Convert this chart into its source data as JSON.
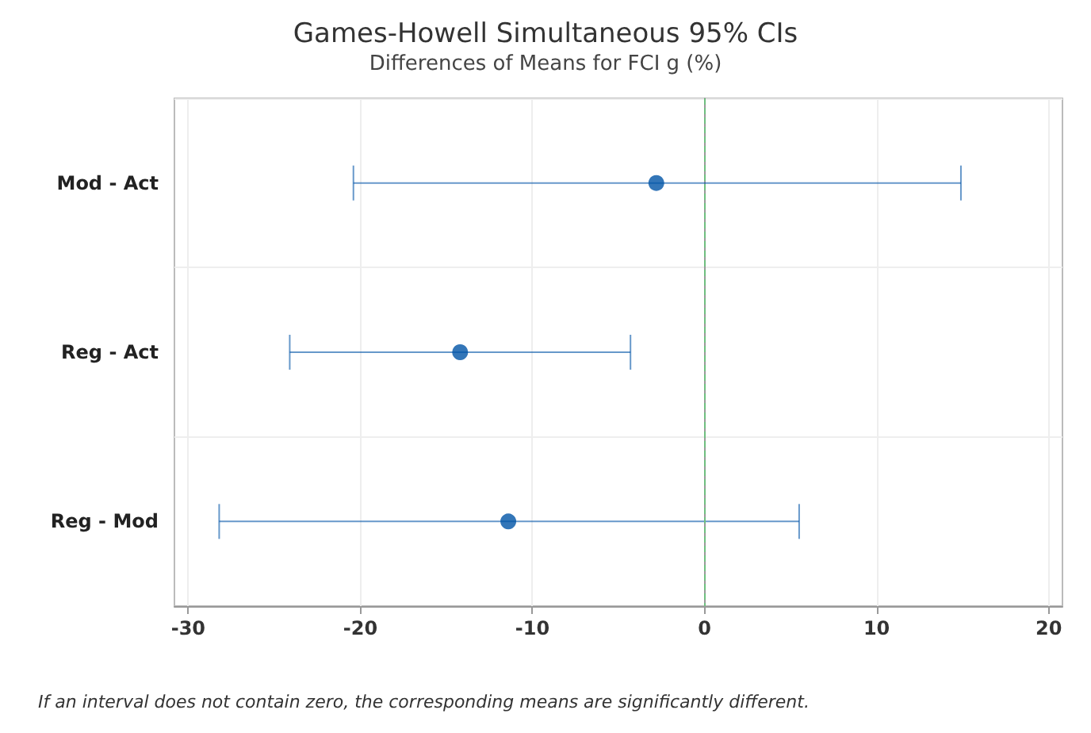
{
  "chart_data": {
    "type": "scatter",
    "orientation": "horizontal",
    "title": "Games-Howell Simultaneous 95% CIs",
    "subtitle": "Differences of Means for FCI g (%)",
    "categories": [
      "Mod - Act",
      "Reg - Act",
      "Reg - Mod"
    ],
    "series": [
      {
        "color": "#0054a6",
        "values": [
          -2.8,
          -14.2,
          -11.4
        ],
        "errors": [
          [
            -20.4,
            14.9
          ],
          [
            -24.1,
            -4.3
          ],
          [
            -28.2,
            5.5
          ]
        ]
      }
    ],
    "xlim": [
      -30.8,
      20.8
    ],
    "xticks": [
      -30,
      -20,
      -10,
      0,
      10,
      20
    ],
    "grid": true,
    "marker": "circle",
    "ref_lines": [
      {
        "axis": "x",
        "value": 0,
        "color": "#6fbf7f",
        "line_style": "dashed"
      }
    ],
    "annotations": [
      "If an interval does not contain zero, the corresponding means are significantly different."
    ]
  }
}
